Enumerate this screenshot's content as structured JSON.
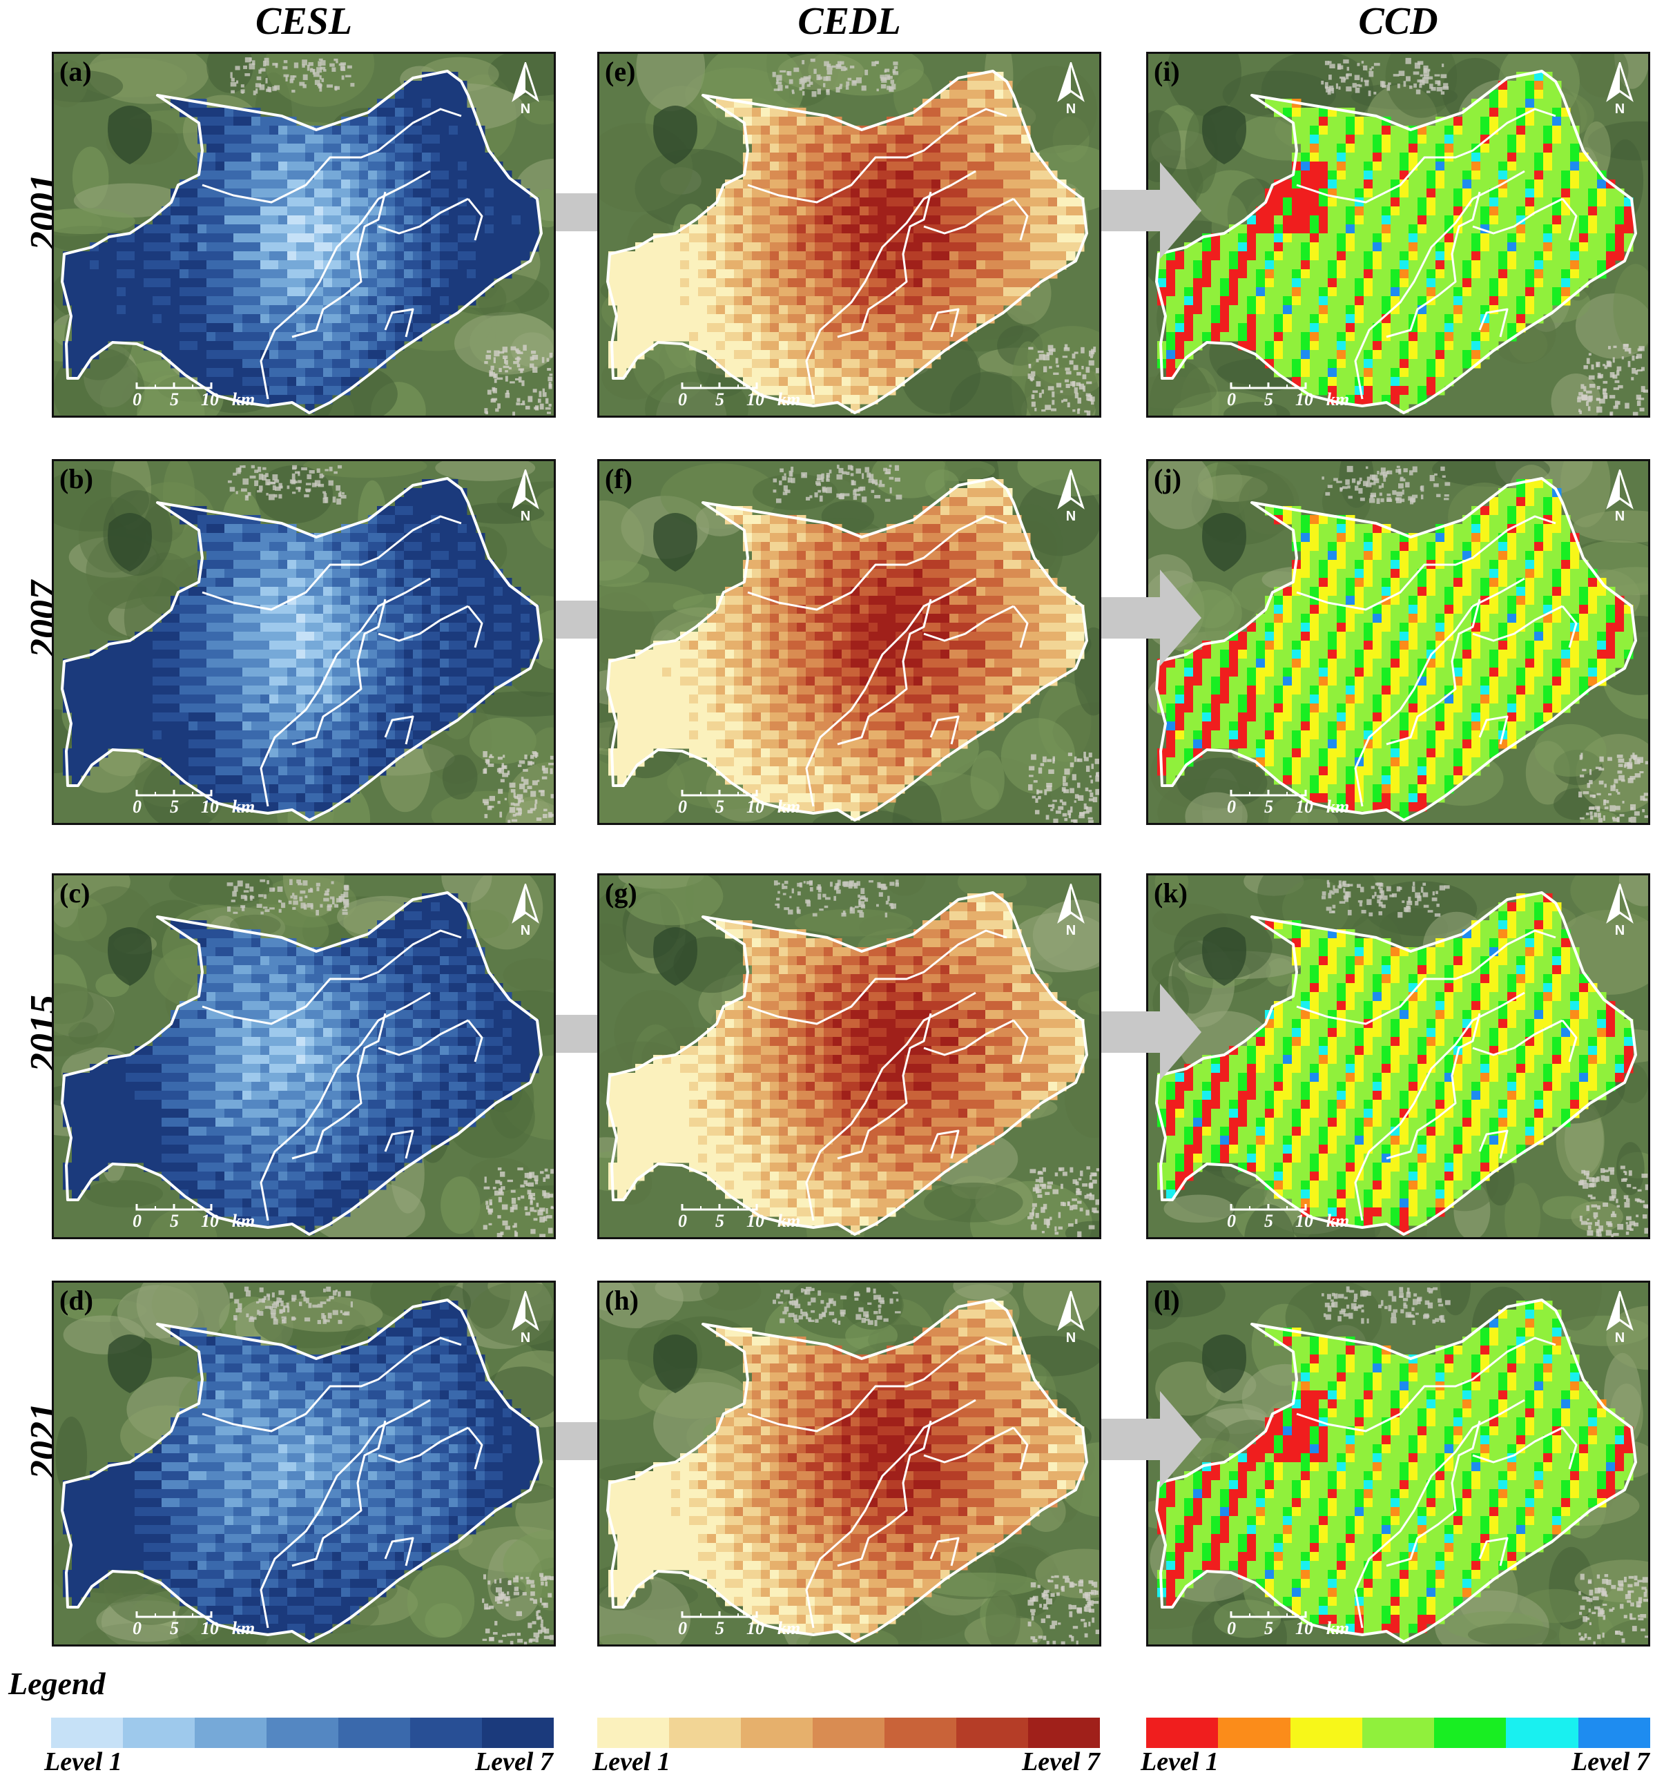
{
  "headers": {
    "col1": "CESL",
    "col2": "CEDL",
    "col3": "CCD"
  },
  "rows": [
    {
      "year": "2001",
      "labels": [
        "(a)",
        "(e)",
        "(i)"
      ],
      "ccdMix": "early"
    },
    {
      "year": "2007",
      "labels": [
        "(b)",
        "(f)",
        "(j)"
      ],
      "ccdMix": "mid"
    },
    {
      "year": "2015",
      "labels": [
        "(c)",
        "(g)",
        "(k)"
      ],
      "ccdMix": "mid"
    },
    {
      "year": "2021",
      "labels": [
        "(d)",
        "(h)",
        "(l)"
      ],
      "ccdMix": "late"
    }
  ],
  "north_label": "N",
  "scale": {
    "t0": "0",
    "t5": "5",
    "t10": "10",
    "unit": "km"
  },
  "legend": {
    "title": "Legend",
    "low": "Level 1",
    "high": "Level 7",
    "cesl_colors": [
      "#c6e1f7",
      "#9ec9ec",
      "#76a9d8",
      "#5487c2",
      "#3a69ac",
      "#284f95",
      "#1b3a7c"
    ],
    "cedl_colors": [
      "#fbf1bd",
      "#f2d595",
      "#e6b06c",
      "#d98c52",
      "#c96339",
      "#b53d27",
      "#a0201a"
    ],
    "ccd_colors": [
      "#f01e1e",
      "#fb8c1a",
      "#f7f719",
      "#90f03c",
      "#18ee22",
      "#19f0f0",
      "#1e8cf0"
    ]
  }
}
